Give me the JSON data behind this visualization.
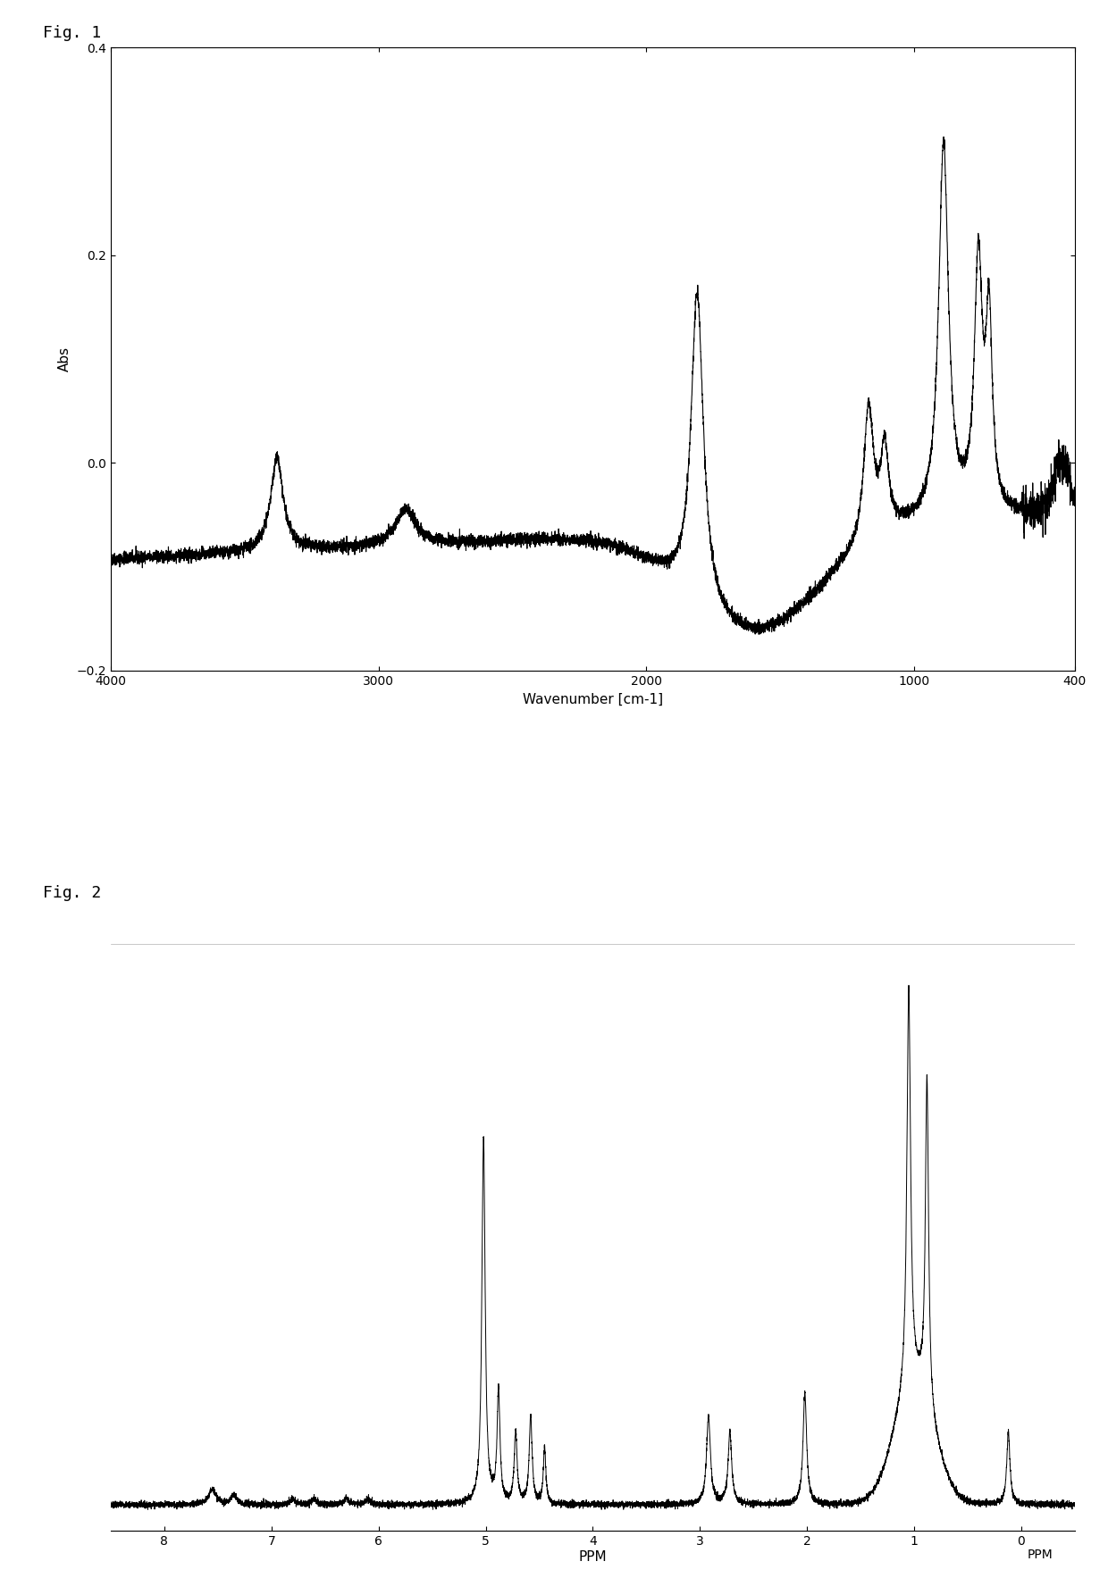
{
  "fig1_title": "Fig. 1",
  "fig2_title": "Fig. 2",
  "fig1_xlabel": "Wavenumber [cm-1]",
  "fig1_ylabel": "Abs",
  "fig1_xlim": [
    4000,
    400
  ],
  "fig1_ylim": [
    -0.2,
    0.4
  ],
  "fig1_yticks": [
    -0.2,
    0,
    0.2,
    0.4
  ],
  "fig1_xticks": [
    4000,
    3000,
    2000,
    1000,
    400
  ],
  "fig2_xlabel": "PPM",
  "fig2_xlim": [
    8.5,
    -0.5
  ],
  "fig2_xticks": [
    8,
    7,
    6,
    5,
    4,
    3,
    2,
    1,
    0
  ],
  "background_color": "#ffffff",
  "line_color": "#000000"
}
